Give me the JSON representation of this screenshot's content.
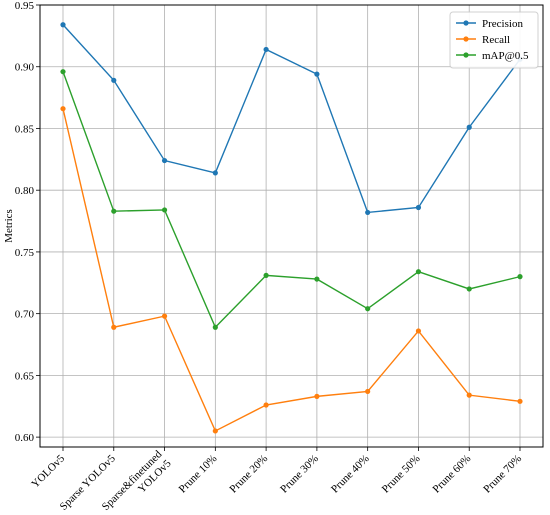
{
  "chart_data": {
    "type": "line",
    "title": "",
    "xlabel": "",
    "ylabel": "Metrics",
    "ylim": [
      0.592,
      0.95
    ],
    "yticks": [
      0.6,
      0.65,
      0.7,
      0.75,
      0.8,
      0.85,
      0.9,
      0.95
    ],
    "ytick_labels": [
      "0.60",
      "0.65",
      "0.70",
      "0.75",
      "0.80",
      "0.85",
      "0.90",
      "0.95"
    ],
    "categories": [
      "YOLOv5",
      "Sparse YOLOv5",
      "Sparse&finetuned YOLOv5",
      "Prune 10%",
      "Prune 20%",
      "Prune 30%",
      "Prune 40%",
      "Prune 50%",
      "Prune 60%",
      "Prune 70%"
    ],
    "category_label_lines": [
      [
        "YOLOv5"
      ],
      [
        "Sparse YOLOv5"
      ],
      [
        "Sparse&finetuned",
        "YOLOv5"
      ],
      [
        "Prune 10%"
      ],
      [
        "Prune 20%"
      ],
      [
        "Prune 30%"
      ],
      [
        "Prune 40%"
      ],
      [
        "Prune 50%"
      ],
      [
        "Prune 60%"
      ],
      [
        "Prune 70%"
      ]
    ],
    "grid": true,
    "legend_position": "top-right",
    "series": [
      {
        "name": "Precision",
        "color": "#1f77b4",
        "values": [
          0.934,
          0.889,
          0.824,
          0.814,
          0.914,
          0.894,
          0.782,
          0.786,
          0.851,
          0.906
        ]
      },
      {
        "name": "Recall",
        "color": "#ff7f0e",
        "values": [
          0.866,
          0.689,
          0.698,
          0.605,
          0.626,
          0.633,
          0.637,
          0.686,
          0.634,
          0.629
        ]
      },
      {
        "name": "mAP@0.5",
        "color": "#2ca02c",
        "values": [
          0.896,
          0.783,
          0.784,
          0.689,
          0.731,
          0.728,
          0.704,
          0.734,
          0.72,
          0.73
        ]
      }
    ]
  }
}
